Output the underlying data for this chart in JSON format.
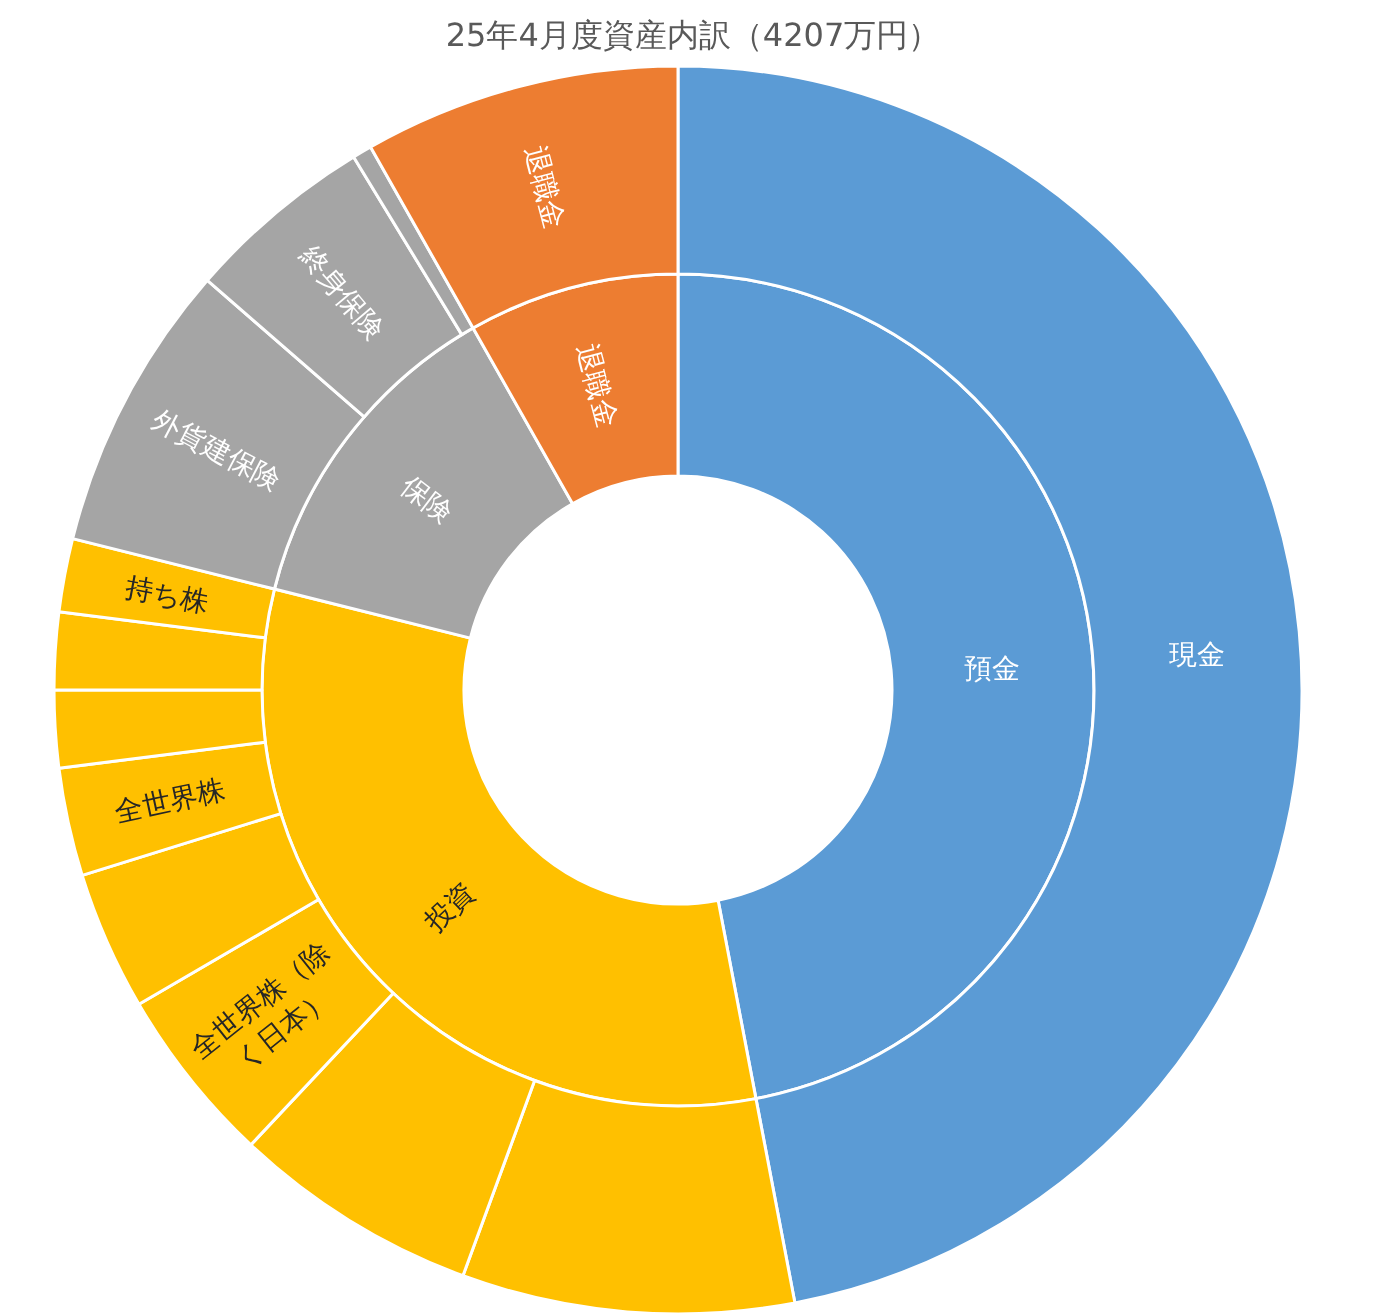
{
  "chart_data": [
    {
      "type": "donut",
      "title": "25年4月度資産内訳（4207万円）",
      "categories": [
        "預金",
        "投資",
        "保険",
        "退職金"
      ],
      "values": [
        47.0,
        31.9,
        12.9,
        8.2
      ],
      "colors": [
        "#5b9bd5",
        "#ffc000",
        "#a5a5a5",
        "#ed7d31"
      ]
    },
    {
      "type": "donut",
      "categories": [
        "現金",
        null,
        null,
        "全世界株（除く日本）",
        null,
        "全世界株",
        null,
        null,
        "持ち株",
        "外貨建保険",
        "終身保険",
        null,
        "退職金"
      ],
      "values": [
        47.0,
        8.6,
        6.4,
        4.6,
        3.6,
        2.8,
        2.0,
        2.0,
        1.9,
        7.5,
        4.9,
        0.5,
        8.2
      ],
      "colors": [
        "#5b9bd5",
        "#ffc000",
        "#ffc000",
        "#ffc000",
        "#ffc000",
        "#ffc000",
        "#ffc000",
        "#ffc000",
        "#ffc000",
        "#a5a5a5",
        "#a5a5a5",
        "#a5a5a5",
        "#ed7d31"
      ]
    }
  ]
}
